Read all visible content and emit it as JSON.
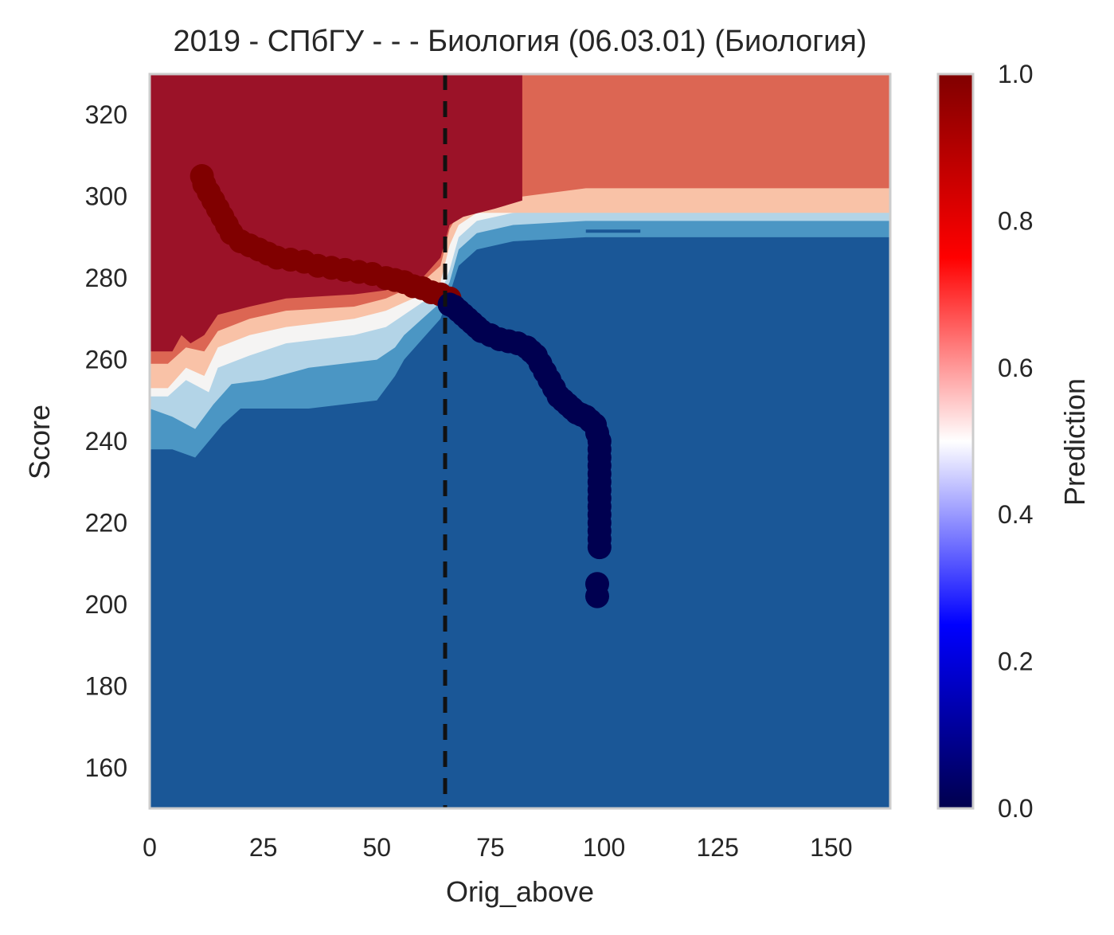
{
  "chart_data": {
    "type": "heatmap",
    "title": "2019 - СПбГУ - - - Биология (06.03.01) (Биология)",
    "xlabel": "Orig_above",
    "ylabel": "Score",
    "xlim": [
      0,
      163
    ],
    "ylim": [
      150,
      330
    ],
    "xticks": [
      "0",
      "25",
      "50",
      "75",
      "100",
      "125",
      "150"
    ],
    "yticks": [
      "160",
      "180",
      "200",
      "220",
      "240",
      "260",
      "280",
      "300",
      "320"
    ],
    "grid": false,
    "vline_x": 65,
    "colorbar": {
      "label": "Prediction",
      "ticks": [
        "0.0",
        "0.2",
        "0.4",
        "0.6",
        "0.8",
        "1.0"
      ],
      "range": [
        0,
        1
      ],
      "colormap": "seismic"
    },
    "contour_colors": {
      "c1": "#1a5797",
      "c2": "#4b96c4",
      "c3": "#b3d4e7",
      "c4": "#f5f4f3",
      "c5": "#f9c2a7",
      "c6": "#dc6653",
      "c7": "#9b1228"
    },
    "points_high": [
      [
        11.5,
        305
      ],
      [
        12,
        303
      ],
      [
        13,
        301
      ],
      [
        14,
        299
      ],
      [
        15,
        297
      ],
      [
        16,
        295
      ],
      [
        17,
        293
      ],
      [
        18,
        291
      ],
      [
        20,
        289
      ],
      [
        22,
        288
      ],
      [
        24,
        287
      ],
      [
        26,
        286
      ],
      [
        28,
        285
      ],
      [
        31,
        284.5
      ],
      [
        34,
        284
      ],
      [
        37,
        283
      ],
      [
        40,
        282.5
      ],
      [
        43,
        282
      ],
      [
        46,
        281.5
      ],
      [
        49,
        281
      ],
      [
        52,
        280
      ],
      [
        54,
        279.5
      ],
      [
        56,
        279
      ],
      [
        58,
        278
      ],
      [
        60,
        277.5
      ],
      [
        62,
        276.5
      ],
      [
        64,
        276
      ],
      [
        66,
        275
      ]
    ],
    "points_low": [
      [
        66,
        273.5
      ],
      [
        67,
        273
      ],
      [
        68,
        272
      ],
      [
        69,
        271
      ],
      [
        70,
        270
      ],
      [
        71,
        269
      ],
      [
        72,
        268
      ],
      [
        73,
        267
      ],
      [
        75,
        266
      ],
      [
        77,
        265
      ],
      [
        79,
        264.5
      ],
      [
        81,
        264
      ],
      [
        83,
        263
      ],
      [
        84,
        262
      ],
      [
        85,
        261
      ],
      [
        86,
        259
      ],
      [
        87,
        257
      ],
      [
        88,
        255
      ],
      [
        89,
        253
      ],
      [
        90,
        251
      ],
      [
        91,
        250
      ],
      [
        92,
        249
      ],
      [
        93,
        248
      ],
      [
        94,
        247
      ],
      [
        95,
        246.5
      ],
      [
        96,
        246
      ],
      [
        97,
        245
      ],
      [
        98,
        244
      ],
      [
        98.5,
        242
      ],
      [
        99,
        240
      ],
      [
        99,
        238
      ],
      [
        99,
        236
      ],
      [
        99,
        234
      ],
      [
        99,
        232
      ],
      [
        99,
        230
      ],
      [
        99,
        228
      ],
      [
        99,
        226
      ],
      [
        99,
        224
      ],
      [
        99,
        222
      ],
      [
        99,
        220
      ],
      [
        99,
        218
      ],
      [
        99,
        216
      ],
      [
        99,
        214
      ],
      [
        98.5,
        205
      ],
      [
        98.5,
        202
      ]
    ],
    "point_colors": {
      "high": "#800000",
      "low": "#000050"
    }
  }
}
